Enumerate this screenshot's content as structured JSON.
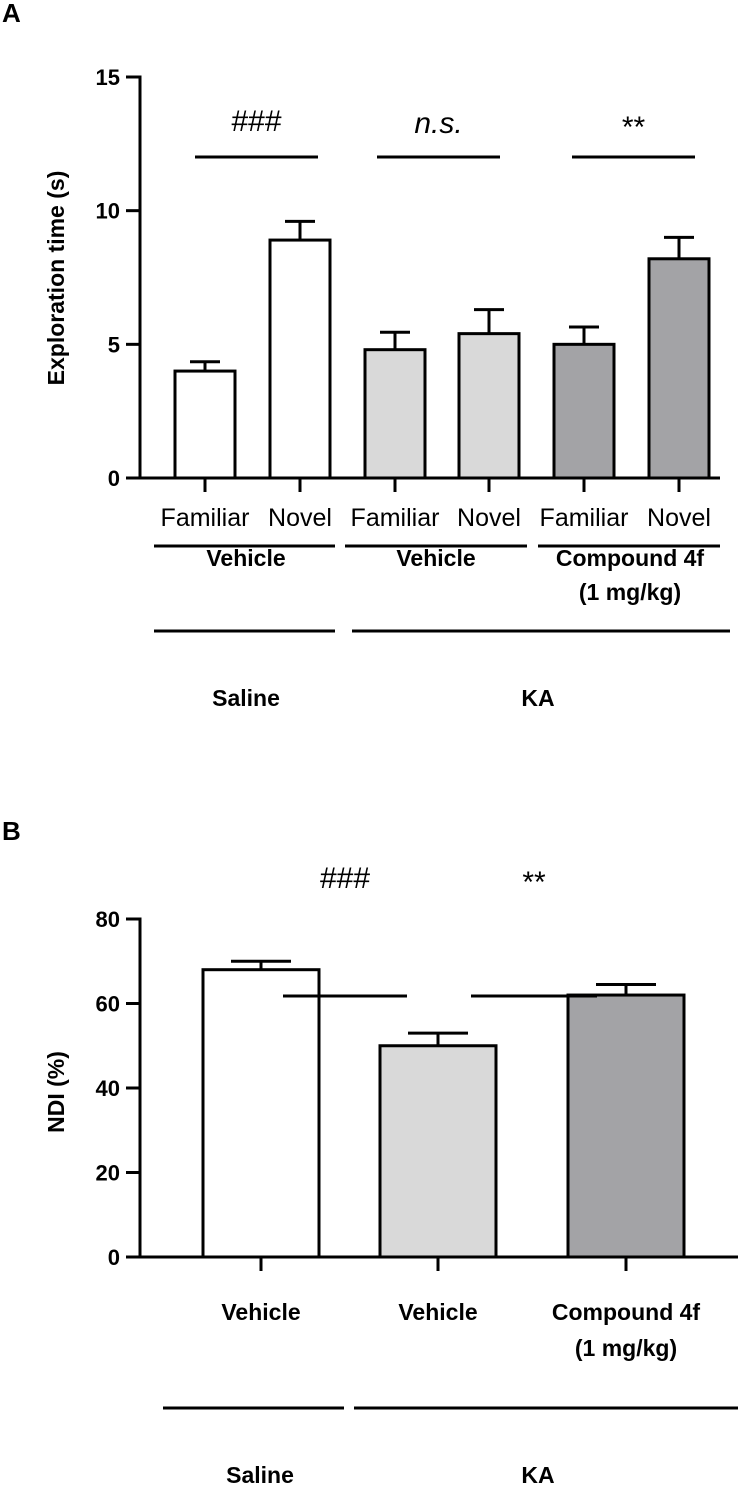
{
  "chart_data": [
    {
      "panel_label": "A",
      "type": "bar",
      "ylabel": "Exploration time (s)",
      "ylim": [
        0,
        15
      ],
      "yticks": [
        0,
        5,
        10,
        15
      ],
      "categories": [
        "Familiar",
        "Novel",
        "Familiar",
        "Novel",
        "Familiar",
        "Novel"
      ],
      "values": [
        4.0,
        8.9,
        4.8,
        5.4,
        5.0,
        8.2
      ],
      "errors": [
        0.35,
        0.7,
        0.65,
        0.9,
        0.65,
        0.8
      ],
      "bar_colors": [
        "#ffffff",
        "#ffffff",
        "#d9d9d9",
        "#d9d9d9",
        "#a3a3a6",
        "#a3a3a6"
      ],
      "significance": [
        {
          "text": "###",
          "italic": false
        },
        {
          "text": "n.s.",
          "italic": true
        },
        {
          "text": "**",
          "italic": false
        }
      ],
      "groups": [
        {
          "label": "Vehicle"
        },
        {
          "label": "Vehicle"
        },
        {
          "label": "Compound 4f",
          "label2": "(1 mg/kg)"
        }
      ],
      "supergroups": [
        {
          "label": "Saline"
        },
        {
          "label": "KA"
        }
      ]
    },
    {
      "panel_label": "B",
      "type": "bar",
      "ylabel": "NDI (%)",
      "ylim": [
        0,
        80
      ],
      "yticks": [
        0,
        20,
        40,
        60,
        80
      ],
      "categories": [
        "Vehicle",
        "Vehicle",
        "Compound 4f"
      ],
      "category_sublabels": [
        "",
        "",
        "(1 mg/kg)"
      ],
      "values": [
        68,
        50,
        62
      ],
      "errors": [
        2,
        3,
        2.5
      ],
      "bar_colors": [
        "#ffffff",
        "#d9d9d9",
        "#a3a3a6"
      ],
      "significance": [
        {
          "text": "###",
          "italic": false
        },
        {
          "text": "**",
          "italic": false
        }
      ],
      "supergroups": [
        {
          "label": "Saline"
        },
        {
          "label": "KA"
        }
      ]
    }
  ]
}
